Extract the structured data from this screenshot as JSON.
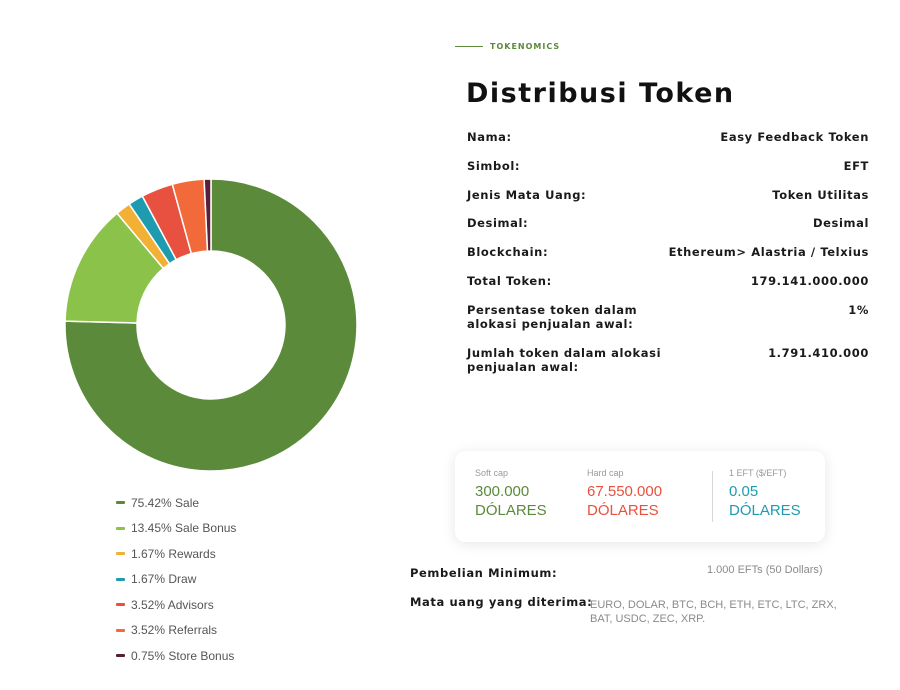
{
  "header": {
    "kicker": "TOKENOMICS",
    "title": "Distribusi Token"
  },
  "info": [
    {
      "key": "Nama:",
      "value": "Easy Feedback Token"
    },
    {
      "key": "Simbol:",
      "value": "EFT"
    },
    {
      "key": "Jenis Mata Uang:",
      "value": "Token Utilitas"
    },
    {
      "key": "Desimal:",
      "value": "Desimal"
    },
    {
      "key": "Blockchain:",
      "value": "Ethereum> Alastria / Telxius"
    },
    {
      "key": "Total Token:",
      "value": "179.141.000.000"
    },
    {
      "key": "Persentase token dalam alokasi penjualan awal:",
      "value": "1%"
    },
    {
      "key": "Jumlah token dalam alokasi penjualan awal:",
      "value": "1.791.410.000"
    }
  ],
  "caps": [
    {
      "label": "Soft cap",
      "value": "300.000",
      "unit": "DÓLARES",
      "color": "#5a8a3a"
    },
    {
      "label": "Hard cap",
      "value": "67.550.000",
      "unit": "DÓLARES",
      "color": "#e8513f"
    },
    {
      "label": "1 EFT ($/EFT)",
      "value": "0.05",
      "unit": "DÓLARES",
      "color": "#1f9bb0"
    }
  ],
  "minimum": {
    "label": "Pembelian Minimum:",
    "value": "1.000 EFTs (50 Dollars)"
  },
  "accepted": {
    "label": "Mata uang yang diterima:",
    "value_line1": "EURO, DOLAR, BTC, BCH, ETH, ETC, LTC, ZRX,",
    "value_line2": "BAT, USDC, ZEC, XRP."
  },
  "chart_data": {
    "type": "pie",
    "donut": true,
    "legend_position": "bottom",
    "series": [
      {
        "name": "75.42% Sale",
        "value": 75.42,
        "color": "#5a8a3a"
      },
      {
        "name": "13.45% Sale Bonus",
        "value": 13.45,
        "color": "#8bc34a"
      },
      {
        "name": "1.67% Rewards",
        "value": 1.67,
        "color": "#f2b134"
      },
      {
        "name": "1.67% Draw",
        "value": 1.67,
        "color": "#1f9bb0"
      },
      {
        "name": "3.52% Advisors",
        "value": 3.52,
        "color": "#e8513f"
      },
      {
        "name": "3.52% Referrals",
        "value": 3.52,
        "color": "#f26a3a"
      },
      {
        "name": "0.75% Store Bonus",
        "value": 0.75,
        "color": "#5a1f3a"
      }
    ]
  }
}
